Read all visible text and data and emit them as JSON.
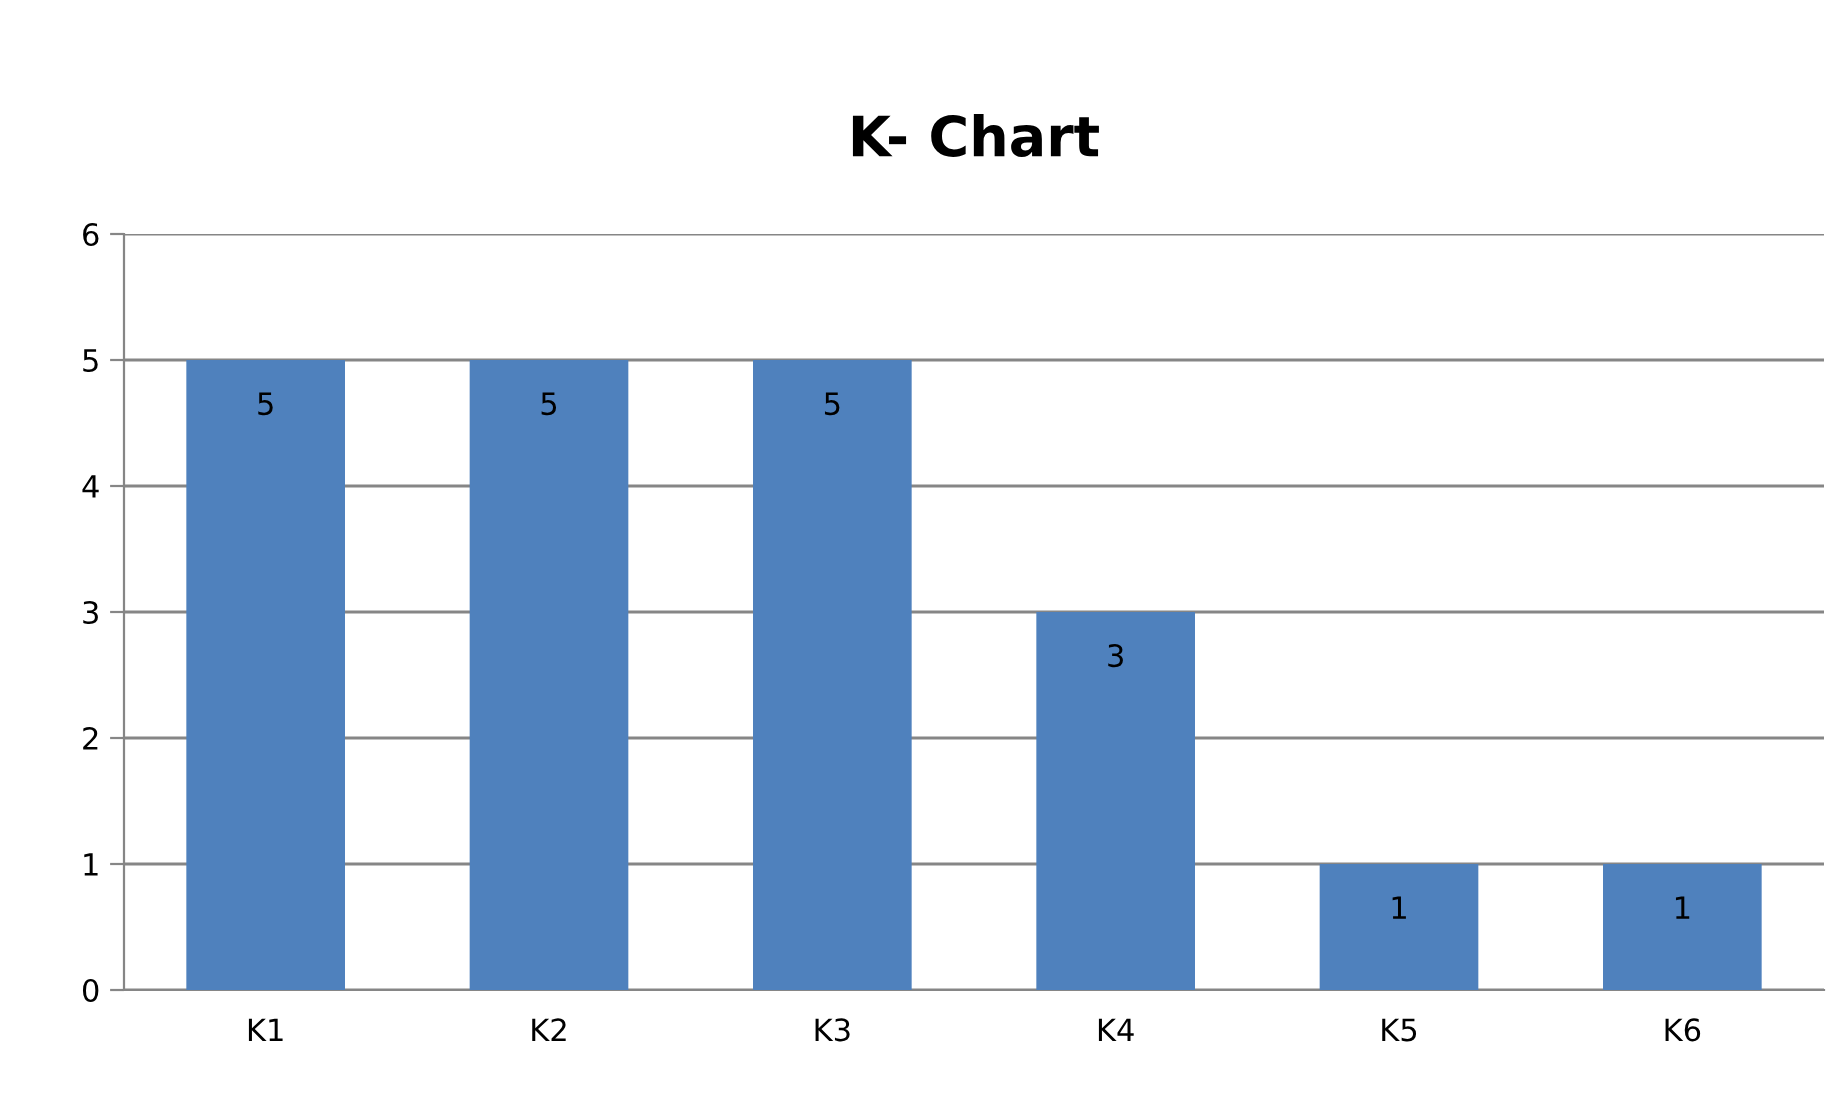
{
  "chart_data": {
    "type": "bar",
    "title": "K- Chart",
    "categories": [
      "K1",
      "K2",
      "K3",
      "K4",
      "K5",
      "K6"
    ],
    "values": [
      5,
      5,
      5,
      3,
      1,
      1
    ],
    "color": "#4f81bd",
    "ylim": [
      0,
      6
    ],
    "yticks": [
      0,
      1,
      2,
      3,
      4,
      5,
      6
    ],
    "grid": "y",
    "data_labels": true,
    "legend": false
  }
}
